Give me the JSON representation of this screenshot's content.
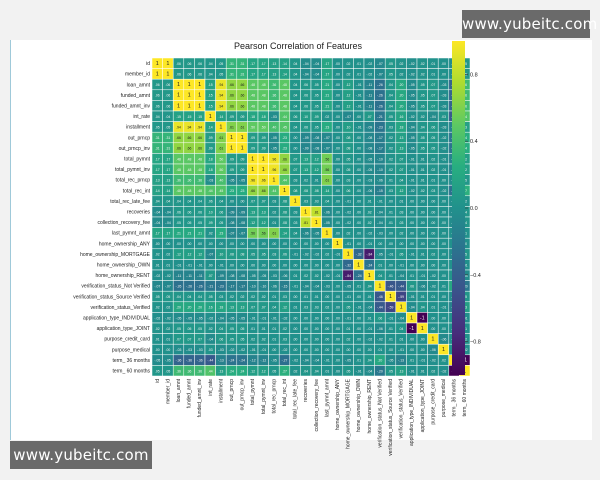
{
  "watermarks": {
    "top": "www.yubeitc.com",
    "bottom": "www.yubeitc.com"
  },
  "chart_data": {
    "type": "heatmap",
    "title": "Pearson Correlation of Features",
    "features": [
      "id",
      "member_id",
      "loan_amnt",
      "funded_amnt",
      "funded_amnt_inv",
      "int_rate",
      "installment",
      "out_prncp",
      "out_prncp_inv",
      "total_pymnt",
      "total_pymnt_inv",
      "total_rec_prncp",
      "total_rec_int",
      "total_rec_late_fee",
      "recoveries",
      "collection_recovery_fee",
      "last_pymnt_amnt",
      "home_ownership_ANY",
      "home_ownership_MORTGAGE",
      "home_ownership_OWN",
      "home_ownership_RENT",
      "verification_status_Not Verified",
      "verification_status_Source Verified",
      "verification_status_Verified",
      "application_type_INDIVIDUAL",
      "application_type_JOINT",
      "purpose_credit_card",
      "purpose_medical",
      "term_ 36 months",
      "term_ 60 months"
    ],
    "matrix": [
      [
        1.0,
        1.0,
        0.06,
        0.06,
        0.06,
        0.04,
        0.05,
        0.31,
        0.31,
        0.17,
        0.17,
        0.13,
        0.14,
        0.04,
        -0.04,
        -0.04,
        0.17,
        0.0,
        0.02,
        0.01,
        -0.02,
        -0.07,
        0.05,
        0.02,
        -0.02,
        0.02,
        0.01,
        0.0,
        -0.05,
        0.05
      ],
      [
        1.0,
        1.0,
        0.06,
        0.06,
        0.06,
        0.04,
        0.05,
        0.31,
        0.31,
        0.17,
        0.17,
        0.13,
        0.14,
        0.04,
        -0.04,
        -0.04,
        0.17,
        0.0,
        0.02,
        0.01,
        -0.02,
        -0.07,
        0.05,
        0.02,
        -0.02,
        0.02,
        0.01,
        0.0,
        -0.05,
        0.05
      ],
      [
        0.06,
        0.06,
        1.0,
        1.0,
        1.0,
        0.15,
        0.94,
        0.66,
        0.66,
        0.48,
        0.48,
        0.36,
        0.48,
        0.04,
        0.06,
        0.05,
        0.21,
        0.0,
        0.12,
        -0.01,
        -0.11,
        -0.26,
        0.04,
        0.2,
        -0.05,
        0.05,
        0.07,
        -0.03,
        -0.36,
        0.36
      ],
      [
        0.06,
        0.06,
        1.0,
        1.0,
        1.0,
        0.15,
        0.94,
        0.66,
        0.66,
        0.48,
        0.48,
        0.36,
        0.48,
        0.04,
        0.06,
        0.05,
        0.21,
        0.0,
        0.12,
        -0.01,
        -0.11,
        -0.26,
        0.04,
        0.2,
        -0.05,
        0.05,
        0.07,
        -0.03,
        -0.36,
        0.36
      ],
      [
        0.06,
        0.06,
        1.0,
        1.0,
        1.0,
        0.15,
        0.94,
        0.66,
        0.66,
        0.48,
        0.48,
        0.36,
        0.48,
        0.04,
        0.06,
        0.05,
        0.21,
        0.0,
        0.12,
        -0.01,
        -0.11,
        -0.26,
        0.04,
        0.2,
        -0.05,
        0.05,
        0.07,
        -0.03,
        -0.36,
        0.36
      ],
      [
        0.04,
        0.04,
        0.15,
        0.15,
        0.15,
        1.0,
        0.14,
        0.09,
        0.09,
        0.18,
        0.18,
        -0.03,
        0.44,
        0.06,
        0.1,
        0.09,
        0.02,
        0.0,
        -0.07,
        0.0,
        0.07,
        -0.21,
        0.05,
        0.16,
        -0.02,
        0.02,
        -0.04,
        0.03,
        -0.44,
        0.44
      ],
      [
        0.05,
        0.05,
        0.94,
        0.94,
        0.94,
        0.14,
        1.0,
        0.61,
        0.61,
        0.5,
        0.5,
        0.4,
        0.45,
        0.04,
        0.06,
        0.05,
        0.23,
        0.0,
        0.1,
        -0.01,
        -0.09,
        -0.23,
        0.03,
        0.18,
        -0.04,
        0.04,
        0.06,
        -0.03,
        -0.13,
        0.13
      ],
      [
        0.31,
        0.31,
        0.66,
        0.66,
        0.66,
        0.09,
        0.61,
        1.0,
        1.0,
        0.09,
        0.09,
        -0.05,
        0.23,
        0.0,
        -0.09,
        -0.08,
        -0.07,
        0.0,
        0.08,
        0.0,
        -0.08,
        -0.17,
        0.02,
        0.13,
        -0.05,
        0.05,
        0.05,
        -0.02,
        -0.24,
        0.24
      ],
      [
        0.31,
        0.31,
        0.66,
        0.66,
        0.66,
        0.09,
        0.61,
        1.0,
        1.0,
        0.09,
        0.09,
        -0.05,
        0.23,
        0.0,
        -0.09,
        -0.08,
        -0.07,
        0.0,
        0.08,
        0.0,
        -0.08,
        -0.17,
        0.02,
        0.13,
        -0.05,
        0.05,
        0.05,
        -0.02,
        -0.24,
        0.24
      ],
      [
        0.17,
        0.17,
        0.48,
        0.48,
        0.48,
        0.18,
        0.5,
        0.09,
        0.09,
        1.0,
        1.0,
        0.96,
        0.66,
        0.07,
        0.13,
        0.12,
        0.56,
        0.0,
        0.05,
        0.0,
        -0.05,
        -0.1,
        0.02,
        0.07,
        -0.01,
        0.01,
        0.02,
        -0.01,
        -0.12,
        0.12
      ],
      [
        0.17,
        0.17,
        0.48,
        0.48,
        0.48,
        0.18,
        0.5,
        0.09,
        0.09,
        1.0,
        1.0,
        0.96,
        0.66,
        0.07,
        0.13,
        0.12,
        0.56,
        0.0,
        0.05,
        0.0,
        -0.05,
        -0.1,
        0.02,
        0.07,
        -0.01,
        0.01,
        0.02,
        -0.01,
        -0.12,
        0.12
      ],
      [
        0.13,
        0.13,
        0.36,
        0.36,
        0.36,
        -0.03,
        0.4,
        -0.05,
        -0.05,
        0.96,
        0.96,
        1.0,
        0.44,
        0.03,
        0.02,
        0.01,
        0.61,
        0.0,
        0.03,
        0.0,
        -0.03,
        -0.06,
        0.01,
        0.04,
        -0.01,
        0.01,
        0.01,
        0.0,
        -0.05,
        0.05
      ],
      [
        0.14,
        0.14,
        0.48,
        0.48,
        0.48,
        0.44,
        0.45,
        0.23,
        0.23,
        0.66,
        0.66,
        0.44,
        1.0,
        0.08,
        0.08,
        0.08,
        0.14,
        0.0,
        0.06,
        0.0,
        -0.06,
        -0.15,
        0.03,
        0.12,
        -0.02,
        0.02,
        0.03,
        -0.02,
        -0.27,
        0.27
      ],
      [
        0.04,
        0.04,
        0.04,
        0.04,
        0.04,
        0.06,
        0.04,
        0.0,
        0.0,
        0.07,
        0.07,
        0.03,
        0.08,
        1.0,
        0.03,
        0.03,
        0.04,
        0.0,
        -0.01,
        0.0,
        0.01,
        -0.01,
        0.0,
        0.01,
        0.0,
        0.0,
        0.0,
        0.0,
        -0.02,
        0.02
      ],
      [
        -0.04,
        -0.04,
        0.06,
        0.06,
        0.06,
        0.1,
        0.06,
        -0.09,
        -0.09,
        0.13,
        0.13,
        0.02,
        0.08,
        0.03,
        1.0,
        0.81,
        -0.06,
        0.0,
        -0.02,
        0.0,
        0.02,
        -0.04,
        0.01,
        0.03,
        0.0,
        0.0,
        0.0,
        0.0,
        -0.04,
        0.04
      ],
      [
        -0.04,
        -0.04,
        0.05,
        0.05,
        0.05,
        0.09,
        0.05,
        -0.08,
        -0.08,
        0.12,
        0.12,
        0.01,
        0.08,
        0.03,
        0.81,
        1.0,
        -0.05,
        0.0,
        -0.02,
        0.0,
        0.02,
        -0.04,
        0.01,
        0.03,
        0.0,
        0.0,
        0.0,
        0.0,
        -0.04,
        0.04
      ],
      [
        0.17,
        0.17,
        0.21,
        0.21,
        0.21,
        0.02,
        0.23,
        -0.07,
        -0.07,
        0.56,
        0.56,
        0.61,
        0.14,
        0.04,
        -0.06,
        -0.05,
        1.0,
        0.0,
        0.02,
        0.0,
        -0.02,
        -0.03,
        0.0,
        0.02,
        0.0,
        0.0,
        0.0,
        0.0,
        -0.01,
        0.01
      ],
      [
        0.0,
        0.0,
        0.0,
        0.0,
        0.0,
        0.0,
        0.0,
        0.0,
        0.0,
        0.0,
        0.0,
        0.0,
        0.0,
        0.0,
        0.0,
        0.0,
        0.0,
        1.0,
        -0.01,
        0.0,
        -0.01,
        0.0,
        0.0,
        0.0,
        0.0,
        0.0,
        0.0,
        0.0,
        0.0,
        0.0
      ],
      [
        0.02,
        0.02,
        0.12,
        0.12,
        0.12,
        -0.07,
        0.1,
        0.08,
        0.08,
        0.05,
        0.05,
        0.03,
        0.06,
        -0.01,
        -0.02,
        -0.02,
        0.02,
        -0.01,
        1.0,
        -0.32,
        -0.84,
        -0.05,
        -0.01,
        0.05,
        -0.01,
        0.01,
        0.02,
        0.0,
        -0.05,
        0.05
      ],
      [
        0.01,
        0.01,
        -0.01,
        -0.01,
        -0.01,
        0.0,
        -0.01,
        0.0,
        0.0,
        0.0,
        0.0,
        0.0,
        0.0,
        0.0,
        0.0,
        0.0,
        0.0,
        0.0,
        -0.32,
        1.0,
        -0.24,
        0.01,
        0.0,
        -0.01,
        0.0,
        0.0,
        0.0,
        0.0,
        0.01,
        -0.01
      ],
      [
        -0.02,
        -0.02,
        -0.11,
        -0.11,
        -0.11,
        0.07,
        -0.09,
        -0.08,
        -0.08,
        -0.05,
        -0.05,
        -0.03,
        -0.06,
        0.01,
        0.02,
        0.02,
        -0.02,
        -0.01,
        -0.84,
        -0.24,
        1.0,
        0.04,
        0.01,
        -0.04,
        0.01,
        -0.01,
        -0.02,
        0.0,
        0.04,
        -0.04
      ],
      [
        -0.07,
        -0.07,
        -0.26,
        -0.26,
        -0.26,
        -0.21,
        -0.23,
        -0.17,
        -0.17,
        -0.1,
        -0.1,
        -0.06,
        -0.15,
        -0.01,
        -0.04,
        -0.04,
        -0.03,
        0.0,
        -0.05,
        0.01,
        0.04,
        1.0,
        -0.46,
        -0.44,
        0.06,
        -0.06,
        -0.02,
        0.01,
        0.2,
        -0.2
      ],
      [
        0.05,
        0.05,
        0.04,
        0.04,
        0.04,
        0.05,
        0.03,
        0.02,
        0.02,
        0.02,
        0.02,
        0.01,
        0.03,
        0.0,
        0.01,
        0.01,
        0.0,
        0.0,
        -0.01,
        0.0,
        0.01,
        -0.46,
        1.0,
        -0.59,
        -0.01,
        0.01,
        0.01,
        0.0,
        -0.05,
        0.05
      ],
      [
        0.02,
        0.02,
        0.2,
        0.2,
        0.2,
        0.16,
        0.18,
        0.13,
        0.13,
        0.07,
        0.07,
        0.04,
        0.12,
        0.01,
        0.03,
        0.03,
        0.02,
        0.0,
        0.05,
        -0.01,
        -0.04,
        -0.44,
        -0.59,
        1.0,
        -0.04,
        0.04,
        0.01,
        -0.01,
        -0.13,
        0.13
      ],
      [
        -0.02,
        -0.02,
        -0.05,
        -0.05,
        -0.05,
        -0.02,
        -0.04,
        -0.05,
        -0.05,
        -0.01,
        -0.01,
        -0.01,
        -0.02,
        0.0,
        0.0,
        0.0,
        0.0,
        0.0,
        -0.01,
        0.0,
        0.01,
        0.06,
        -0.01,
        -0.04,
        1.0,
        -1.0,
        0.0,
        0.0,
        0.01,
        -0.01
      ],
      [
        0.02,
        0.02,
        0.05,
        0.05,
        0.05,
        0.02,
        0.04,
        0.05,
        0.05,
        0.01,
        0.01,
        0.01,
        0.02,
        0.0,
        0.0,
        0.0,
        0.0,
        0.0,
        0.01,
        0.0,
        -0.01,
        -0.06,
        0.01,
        0.04,
        -1.0,
        1.0,
        0.0,
        0.0,
        -0.01,
        0.01
      ],
      [
        0.01,
        0.01,
        0.07,
        0.07,
        0.07,
        -0.04,
        0.06,
        0.05,
        0.05,
        0.02,
        0.02,
        0.01,
        0.03,
        0.0,
        0.0,
        0.0,
        0.0,
        0.0,
        0.02,
        0.0,
        -0.02,
        -0.02,
        0.01,
        0.01,
        0.0,
        0.0,
        1.0,
        -0.06,
        -0.02,
        0.02
      ],
      [
        0.0,
        0.0,
        -0.03,
        -0.03,
        -0.03,
        0.03,
        -0.03,
        -0.02,
        -0.02,
        -0.01,
        -0.01,
        0.0,
        -0.02,
        0.0,
        0.0,
        0.0,
        0.0,
        0.0,
        0.0,
        0.0,
        0.0,
        0.01,
        0.0,
        -0.01,
        0.0,
        0.0,
        -0.06,
        1.0,
        0.02,
        -0.02
      ],
      [
        -0.05,
        -0.05,
        -0.36,
        -0.36,
        -0.36,
        -0.44,
        -0.13,
        -0.24,
        -0.24,
        -0.12,
        -0.12,
        -0.05,
        -0.27,
        -0.02,
        -0.04,
        -0.04,
        -0.01,
        0.0,
        -0.05,
        0.01,
        0.04,
        0.2,
        -0.05,
        -0.13,
        0.01,
        -0.01,
        -0.02,
        0.02,
        1.0,
        -1.0
      ],
      [
        0.05,
        0.05,
        0.36,
        0.36,
        0.36,
        0.44,
        0.13,
        0.24,
        0.24,
        0.12,
        0.12,
        0.05,
        0.27,
        0.02,
        0.04,
        0.04,
        0.01,
        0.0,
        0.05,
        -0.01,
        -0.04,
        -0.2,
        0.05,
        0.13,
        -0.01,
        0.01,
        0.02,
        -0.02,
        -1.0,
        1.0
      ]
    ],
    "colorbar": {
      "ticks": [
        0.8,
        0.4,
        0.0,
        -0.4,
        -0.8
      ],
      "range": [
        -1,
        1
      ],
      "colormap": "viridis"
    },
    "annotations": "cell values shown with 2 decimals"
  }
}
